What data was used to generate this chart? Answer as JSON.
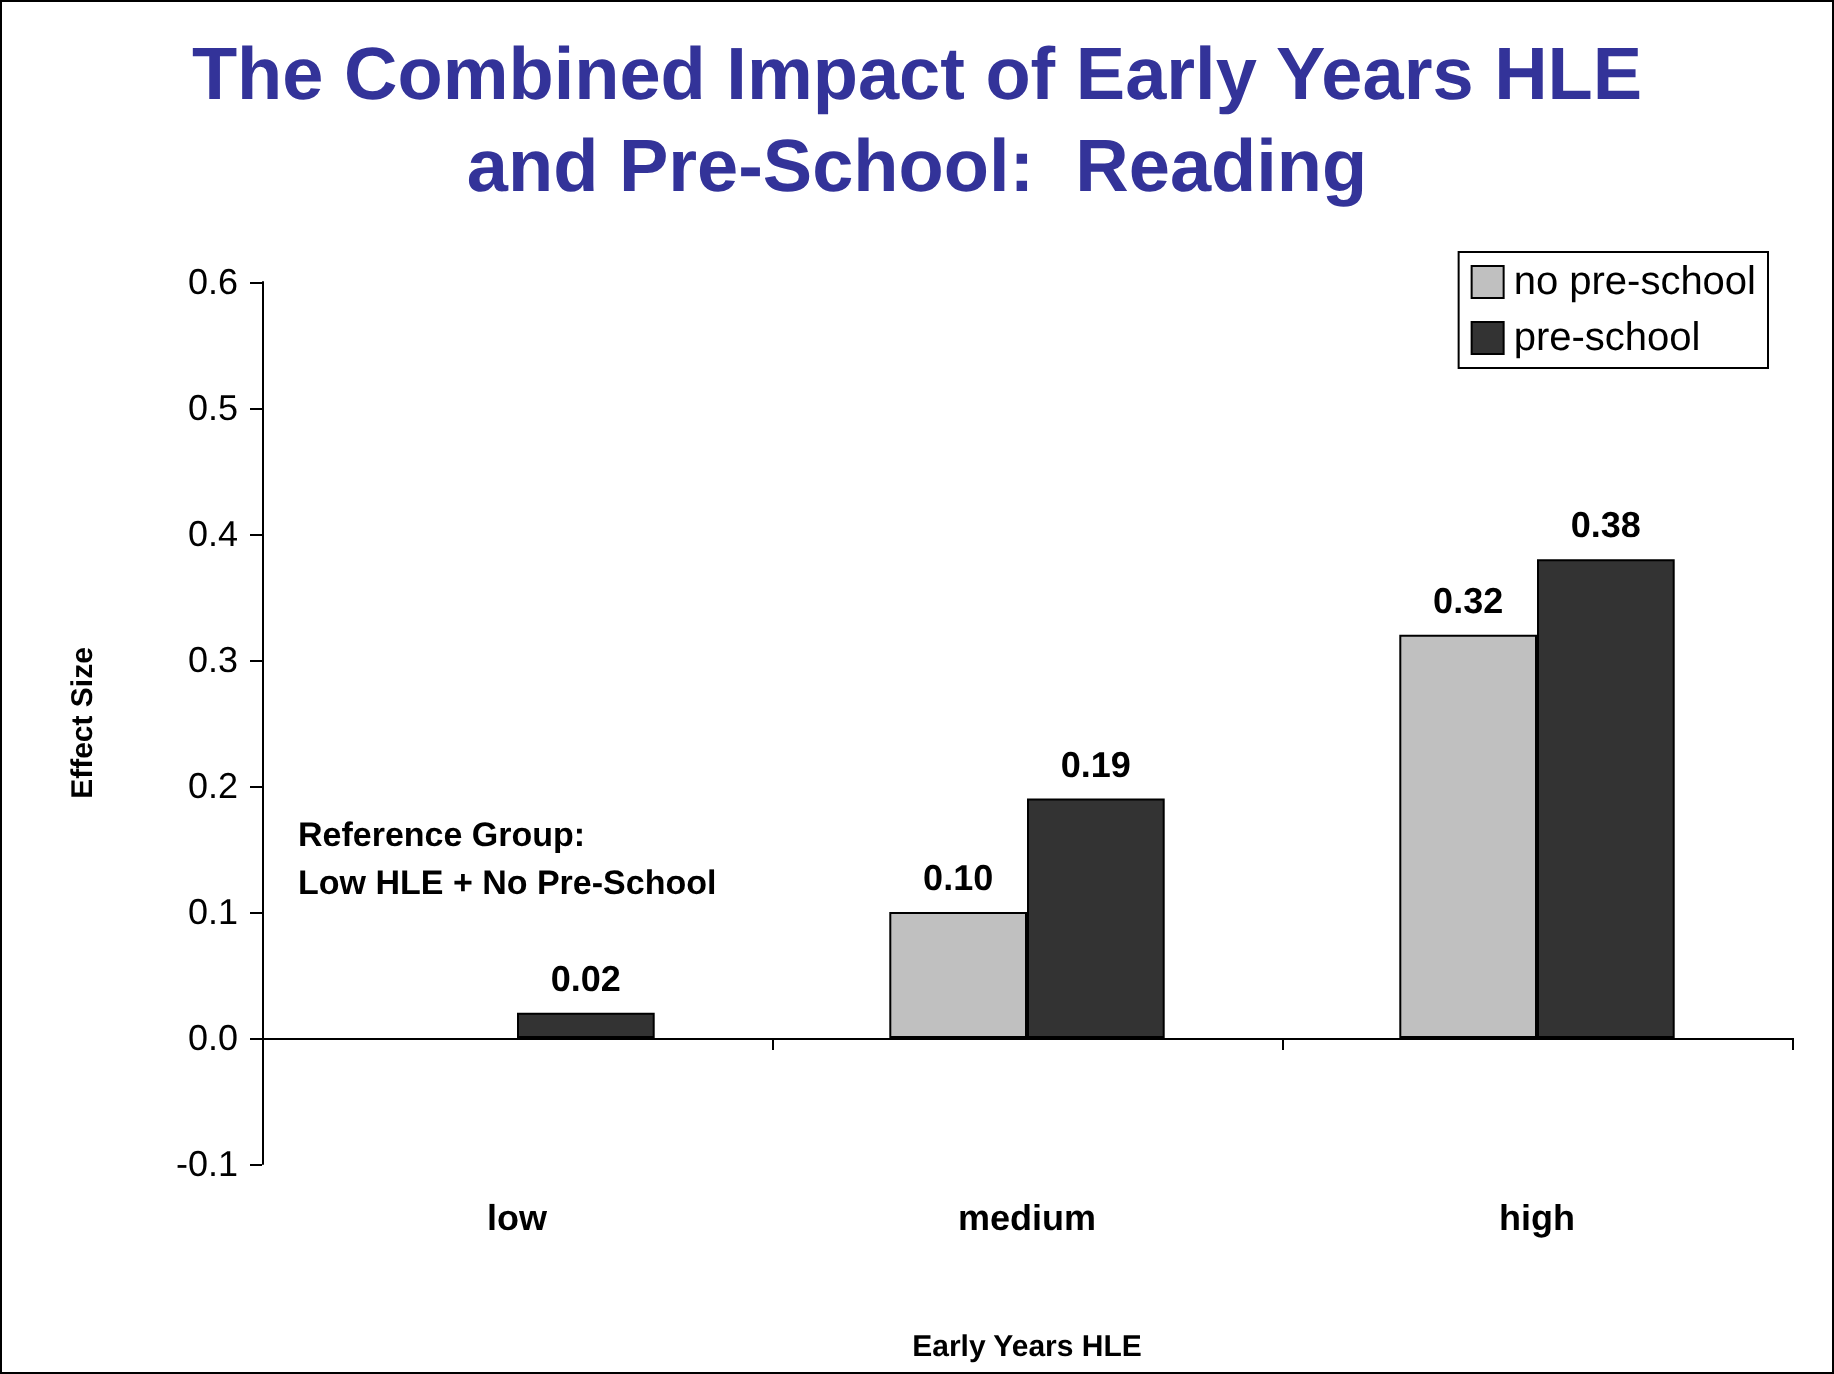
{
  "chart_data": {
    "type": "bar",
    "title": "The Combined Impact of Early Years HLE\nand Pre-School:  Reading",
    "xlabel": "Early Years HLE",
    "ylabel": "Effect Size",
    "categories": [
      "low",
      "medium",
      "high"
    ],
    "series": [
      {
        "name": "no pre-school",
        "color": "#c0c0c0",
        "values": [
          null,
          0.1,
          0.32
        ],
        "value_labels": [
          null,
          "0.10",
          "0.32"
        ]
      },
      {
        "name": "pre-school",
        "color": "#333333",
        "values": [
          0.02,
          0.19,
          0.38
        ],
        "value_labels": [
          "0.02",
          "0.19",
          "0.38"
        ]
      }
    ],
    "ylim": [
      -0.1,
      0.6
    ],
    "yticks": [
      -0.1,
      {
        "value": 0,
        "label": "0.0"
      },
      0.1,
      0.2,
      0.3,
      0.4,
      0.5,
      0.6
    ],
    "annotations": [
      "Reference Group:",
      "Low HLE + No Pre-School"
    ],
    "legend": "top right"
  }
}
